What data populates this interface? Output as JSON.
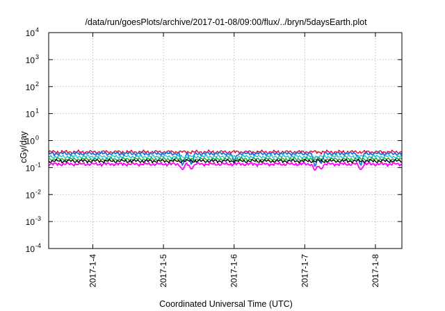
{
  "chart_data": {
    "type": "line",
    "title": "/data/run/goesPlots/archive/2017-01-08/09:00/flux/../bryn/5daysEarth.plot",
    "xlabel": "Coordinated Universal Time (UTC)",
    "ylabel": "cGy/day",
    "yscale": "log",
    "ylim": [
      0.0001,
      10000
    ],
    "yticks": [
      {
        "base": "10",
        "exp": "-4",
        "value": 0.0001
      },
      {
        "base": "10",
        "exp": "-3",
        "value": 0.001
      },
      {
        "base": "10",
        "exp": "-2",
        "value": 0.01
      },
      {
        "base": "10",
        "exp": "-1",
        "value": 0.1
      },
      {
        "base": "10",
        "exp": "0",
        "value": 1
      },
      {
        "base": "10",
        "exp": "1",
        "value": 10
      },
      {
        "base": "10",
        "exp": "2",
        "value": 100
      },
      {
        "base": "10",
        "exp": "3",
        "value": 1000
      },
      {
        "base": "10",
        "exp": "4",
        "value": 10000
      }
    ],
    "xlim": [
      "2017-01-03T09:00",
      "2017-01-08T09:00"
    ],
    "xticks": [
      {
        "label": "2017-1-4",
        "date": "2017-01-04T00:00"
      },
      {
        "label": "2017-1-5",
        "date": "2017-01-05T00:00"
      },
      {
        "label": "2017-1-6",
        "date": "2017-01-06T00:00"
      },
      {
        "label": "2017-1-7",
        "date": "2017-01-07T00:00"
      },
      {
        "label": "2017-1-8",
        "date": "2017-01-08T00:00"
      }
    ],
    "grid": true,
    "series": [
      {
        "color": "#e8002a",
        "level": 0.38,
        "dips": []
      },
      {
        "color": "#1e6fe8",
        "level": 0.33,
        "dips": [
          {
            "date": "2017-01-05T06:30",
            "value": 0.11
          },
          {
            "date": "2017-01-05T09:30",
            "value": 0.12
          },
          {
            "date": "2017-01-06T00:00",
            "value": 0.17
          },
          {
            "date": "2017-01-07T03:30",
            "value": 0.1
          },
          {
            "date": "2017-01-07T05:30",
            "value": 0.13
          },
          {
            "date": "2017-01-07T19:00",
            "value": 0.11
          }
        ]
      },
      {
        "color": "#1bc6c6",
        "level": 0.255,
        "dips": []
      },
      {
        "color": "#22a43a",
        "level": 0.205,
        "dips": []
      },
      {
        "color": "#000000",
        "level": 0.175,
        "dips": []
      },
      {
        "color": "#ff00ff",
        "level": 0.135,
        "dips": [
          {
            "date": "2017-01-05T06:30",
            "value": 0.08
          },
          {
            "date": "2017-01-05T09:30",
            "value": 0.085
          },
          {
            "date": "2017-01-07T03:30",
            "value": 0.075
          },
          {
            "date": "2017-01-07T05:30",
            "value": 0.085
          },
          {
            "date": "2017-01-07T19:00",
            "value": 0.08
          }
        ]
      }
    ]
  }
}
